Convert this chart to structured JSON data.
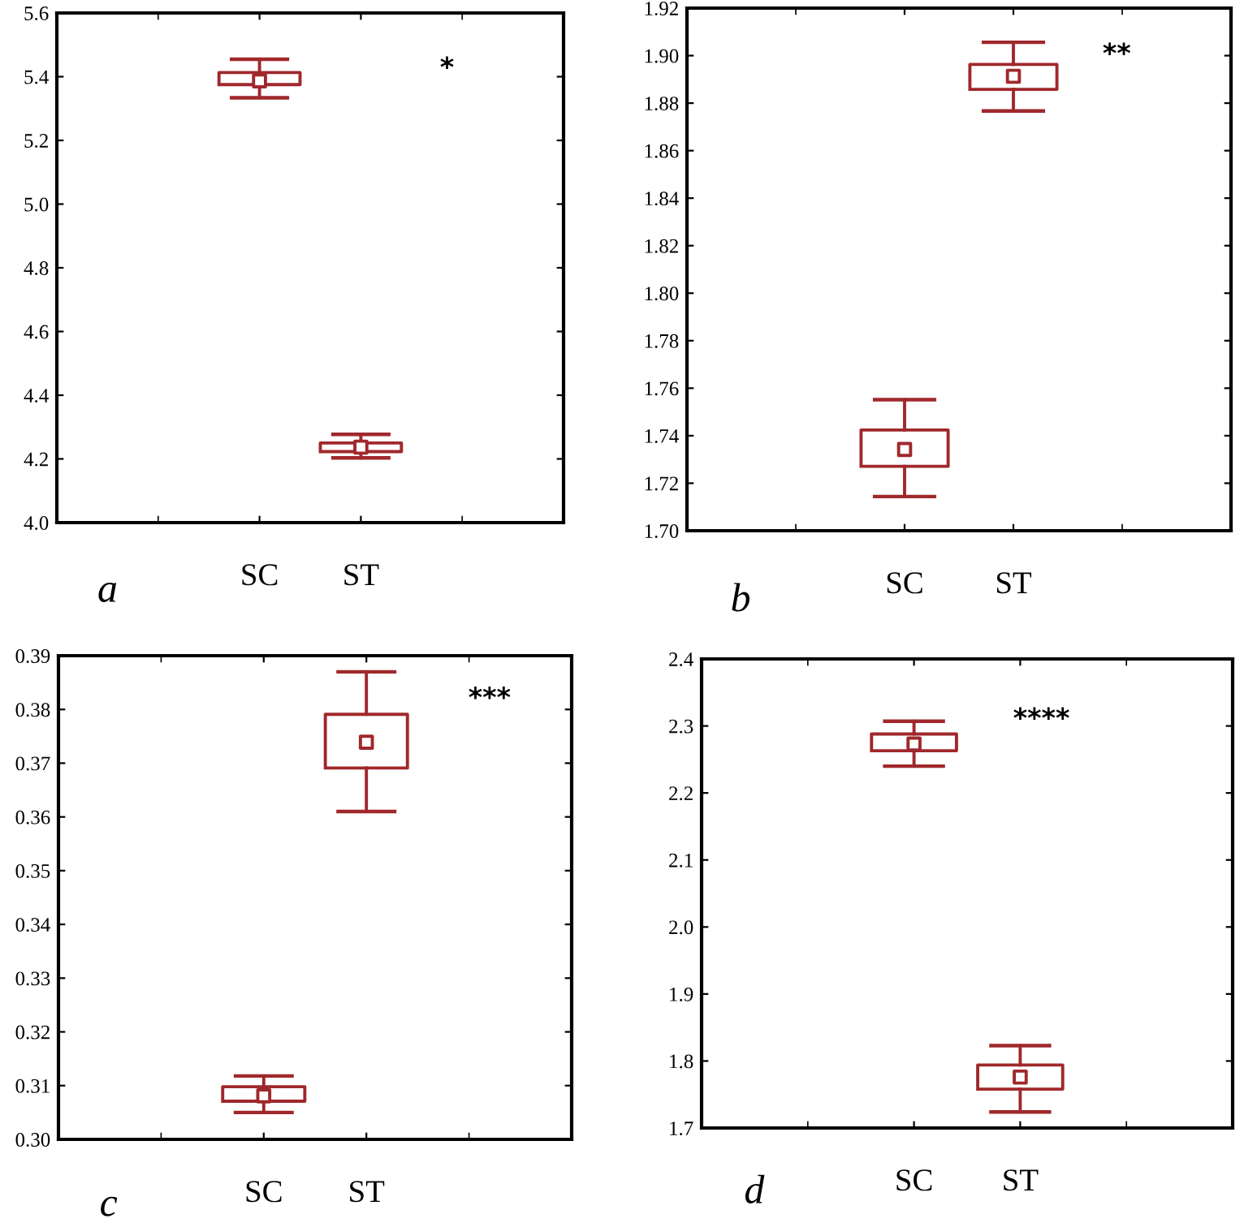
{
  "chart_data": [
    {
      "type": "box",
      "categories": [
        "SC",
        "ST"
      ],
      "color": "#a0282c",
      "ylim": [
        4.0,
        5.6
      ],
      "yticks": [
        {
          "value": 4.0,
          "label": "4.0"
        },
        4.2,
        4.4,
        4.6,
        4.8,
        {
          "value": 5.0,
          "label": "5.0"
        },
        5.2,
        5.4,
        5.6
      ],
      "grid": false,
      "marker": "square",
      "boxes": [
        {
          "low": 5.334,
          "q1": 5.375,
          "median": 5.387,
          "q3": 5.413,
          "high": 5.455
        },
        {
          "low": 4.203,
          "q1": 4.223,
          "median": 4.237,
          "q3": 4.25,
          "high": 4.277
        }
      ],
      "annotations": [
        "*",
        "a"
      ]
    },
    {
      "type": "box",
      "categories": [
        "SC",
        "ST"
      ],
      "color": "#a0282c",
      "ylim": [
        1.7,
        1.92
      ],
      "yticks": [
        {
          "value": 1.7,
          "label": "1.70"
        },
        1.72,
        1.74,
        1.76,
        1.78,
        {
          "value": 1.8,
          "label": "1.80"
        },
        1.82,
        1.84,
        1.86,
        1.88,
        {
          "value": 1.9,
          "label": "1.90"
        },
        1.92
      ],
      "grid": false,
      "marker": "square",
      "boxes": [
        {
          "low": 1.7144,
          "q1": 1.7271,
          "median": 1.7342,
          "q3": 1.7424,
          "high": 1.7552
        },
        {
          "low": 1.8767,
          "q1": 1.8858,
          "median": 1.8913,
          "q3": 1.8963,
          "high": 1.9056
        }
      ],
      "annotations": [
        "**",
        "b"
      ]
    },
    {
      "type": "box",
      "categories": [
        "SC",
        "ST"
      ],
      "color": "#a0282c",
      "ylim": [
        0.3,
        0.39
      ],
      "yticks": [
        {
          "value": 0.3,
          "label": "0.30"
        },
        0.31,
        0.32,
        0.33,
        0.34,
        0.35,
        0.36,
        0.37,
        0.38,
        0.39
      ],
      "grid": false,
      "marker": "square",
      "boxes": [
        {
          "low": 0.305,
          "q1": 0.3071,
          "median": 0.3081,
          "q3": 0.3098,
          "high": 0.3118
        },
        {
          "low": 0.361,
          "q1": 0.3691,
          "median": 0.3739,
          "q3": 0.3791,
          "high": 0.387
        }
      ],
      "annotations": [
        "***",
        "c"
      ]
    },
    {
      "type": "box",
      "categories": [
        "SC",
        "ST"
      ],
      "color": "#a0282c",
      "ylim": [
        1.7,
        2.4
      ],
      "yticks": [
        1.7,
        1.8,
        1.9,
        {
          "value": 2.0,
          "label": "2.0"
        },
        2.1,
        2.2,
        2.3,
        2.4
      ],
      "grid": false,
      "marker": "square",
      "boxes": [
        {
          "low": 2.24,
          "q1": 2.263,
          "median": 2.273,
          "q3": 2.288,
          "high": 2.307
        },
        {
          "low": 1.724,
          "q1": 1.758,
          "median": 1.776,
          "q3": 1.794,
          "high": 1.823
        }
      ],
      "annotations": [
        "****",
        "d"
      ]
    }
  ]
}
